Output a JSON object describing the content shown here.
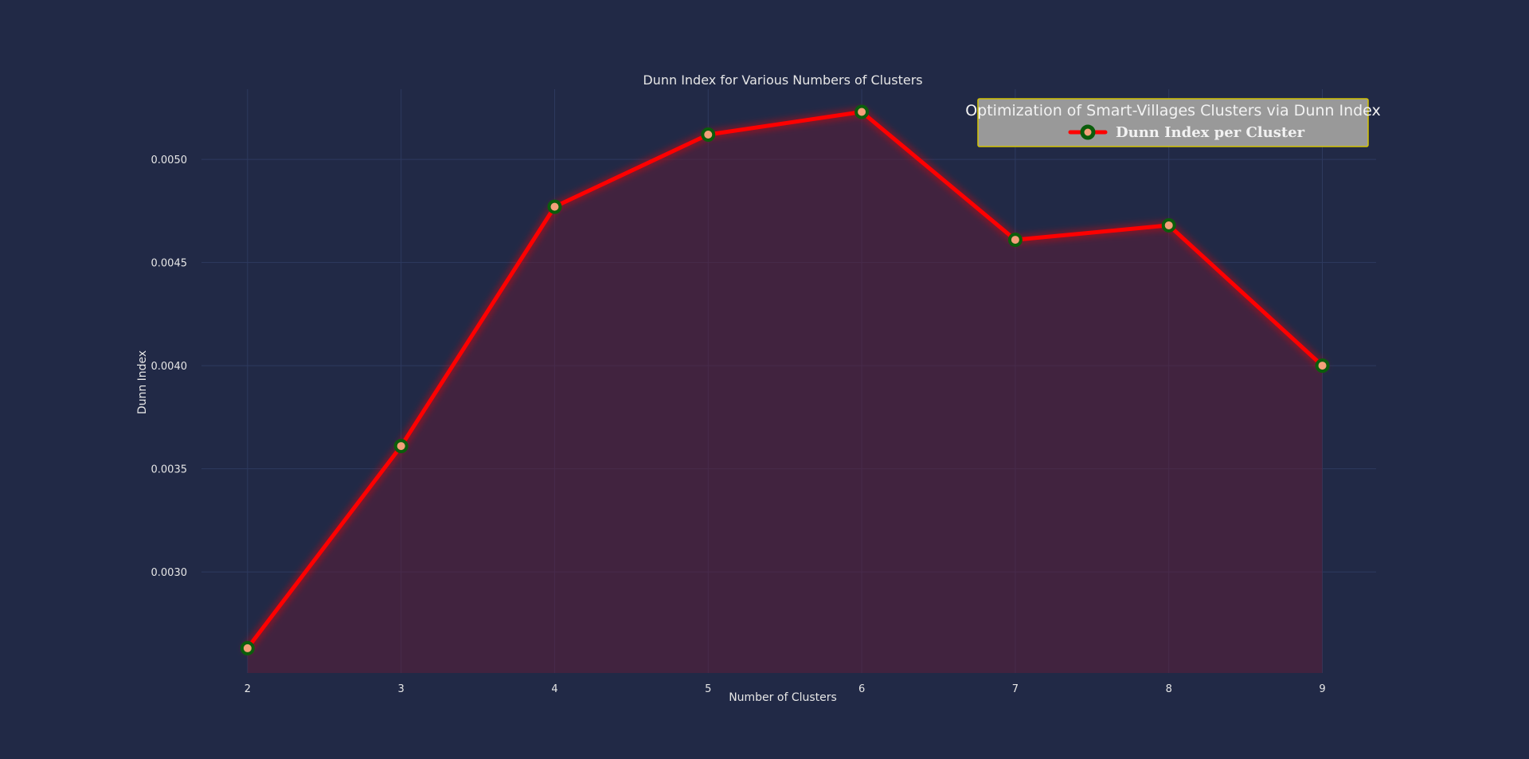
{
  "chart_data": {
    "type": "line",
    "title": "Dunn Index for Various Numbers of Clusters",
    "xlabel": "Number of Clusters",
    "ylabel": "Dunn Index",
    "x": [
      2,
      3,
      4,
      5,
      6,
      7,
      8,
      9
    ],
    "series": [
      {
        "name": "Dunn Index per Cluster",
        "values": [
          0.00263,
          0.00361,
          0.00477,
          0.00512,
          0.00523,
          0.00461,
          0.00468,
          0.004
        ]
      }
    ],
    "xlim": [
      1.7,
      9.35
    ],
    "ylim": [
      0.00251,
      0.00534
    ],
    "xticks": [
      2,
      3,
      4,
      5,
      6,
      7,
      8,
      9
    ],
    "yticks": [
      0.003,
      0.0035,
      0.004,
      0.0045,
      0.005
    ],
    "ytick_labels": [
      "0.0030",
      "0.0035",
      "0.0040",
      "0.0045",
      "0.0050"
    ],
    "grid": true,
    "fill_under_line": true,
    "legend": {
      "title": "Optimization of Smart-Villages Clusters via Dunn Index",
      "placement": "top-right"
    },
    "colors": {
      "background": "#212946",
      "line": "#ff0000",
      "marker_edge": "#0b5d0b",
      "marker_face": "#f4a07a",
      "fill": "#5c1f3a",
      "grid": "#2e3a5f",
      "legend_bg": "#999999",
      "legend_border": "#d4c400"
    }
  }
}
